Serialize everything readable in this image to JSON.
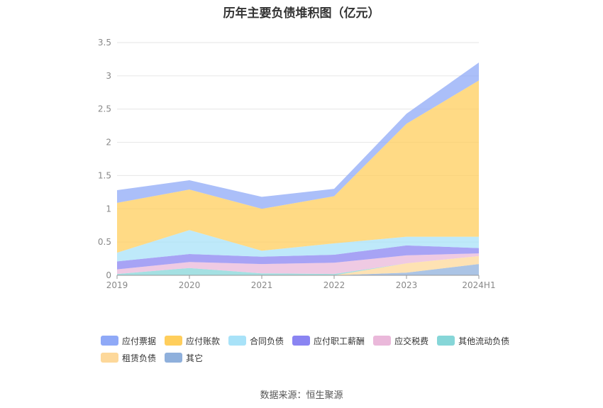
{
  "chart_data": {
    "type": "area",
    "stacked": true,
    "title": "历年主要负债堆积图（亿元）",
    "xlabel": "",
    "ylabel": "",
    "categories": [
      "2019",
      "2020",
      "2021",
      "2022",
      "2023",
      "2024H1"
    ],
    "ylim": [
      0,
      3.5
    ],
    "yticks": [
      "0",
      "0.5",
      "1",
      "1.5",
      "2",
      "2.5",
      "3",
      "3.5"
    ],
    "grid": true,
    "legend_position": "bottom-left",
    "series": [
      {
        "name": "其它",
        "color": "#8fb0dc",
        "values": [
          0,
          0,
          0,
          0,
          0.04,
          0.17
        ]
      },
      {
        "name": "租赁负债",
        "color": "#fdd89a",
        "values": [
          0,
          0,
          0,
          0,
          0.14,
          0.12
        ]
      },
      {
        "name": "其他流动负债",
        "color": "#86d6d8",
        "values": [
          0.02,
          0.11,
          0.03,
          0.02,
          0,
          0
        ]
      },
      {
        "name": "应交税费",
        "color": "#eab8da",
        "values": [
          0.07,
          0.09,
          0.14,
          0.17,
          0.12,
          0.04
        ]
      },
      {
        "name": "应付职工薪酬",
        "color": "#8a84f2",
        "values": [
          0.12,
          0.12,
          0.11,
          0.12,
          0.15,
          0.08
        ]
      },
      {
        "name": "合同负债",
        "color": "#a8e2f8",
        "values": [
          0.13,
          0.36,
          0.09,
          0.17,
          0.13,
          0.17
        ]
      },
      {
        "name": "应付账款",
        "color": "#ffce5c",
        "values": [
          0.75,
          0.61,
          0.63,
          0.71,
          1.7,
          2.35
        ]
      },
      {
        "name": "应付票据",
        "color": "#8fa9f7",
        "values": [
          0.19,
          0.14,
          0.18,
          0.11,
          0.15,
          0.27
        ]
      }
    ],
    "legend_order": [
      "应付票据",
      "应付账款",
      "合同负债",
      "应付职工薪酬",
      "应交税费",
      "其他流动负债",
      "租赁负债",
      "其它"
    ]
  },
  "source_text": "数据来源：恒生聚源"
}
